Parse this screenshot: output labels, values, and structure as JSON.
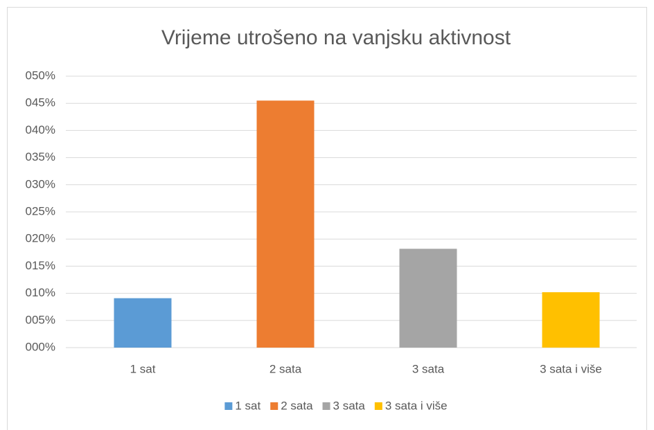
{
  "chart_data": {
    "type": "bar",
    "title": "Vrijeme utrošeno na vanjsku aktivnost",
    "categories": [
      "1 sat",
      "2 sata",
      "3 sata",
      "3 sata i više"
    ],
    "values": [
      9.1,
      45.5,
      18.2,
      10.2
    ],
    "colors": [
      "#5b9bd5",
      "#ed7d31",
      "#a5a5a5",
      "#ffc000"
    ],
    "ylim": [
      0,
      50
    ],
    "yticks": [
      {
        "value": 0,
        "label": "000%"
      },
      {
        "value": 5,
        "label": "005%"
      },
      {
        "value": 10,
        "label": "010%"
      },
      {
        "value": 15,
        "label": "015%"
      },
      {
        "value": 20,
        "label": "020%"
      },
      {
        "value": 25,
        "label": "025%"
      },
      {
        "value": 30,
        "label": "030%"
      },
      {
        "value": 35,
        "label": "035%"
      },
      {
        "value": 40,
        "label": "040%"
      },
      {
        "value": 45,
        "label": "045%"
      },
      {
        "value": 50,
        "label": "050%"
      }
    ],
    "grid": true,
    "legend": "bottom"
  }
}
